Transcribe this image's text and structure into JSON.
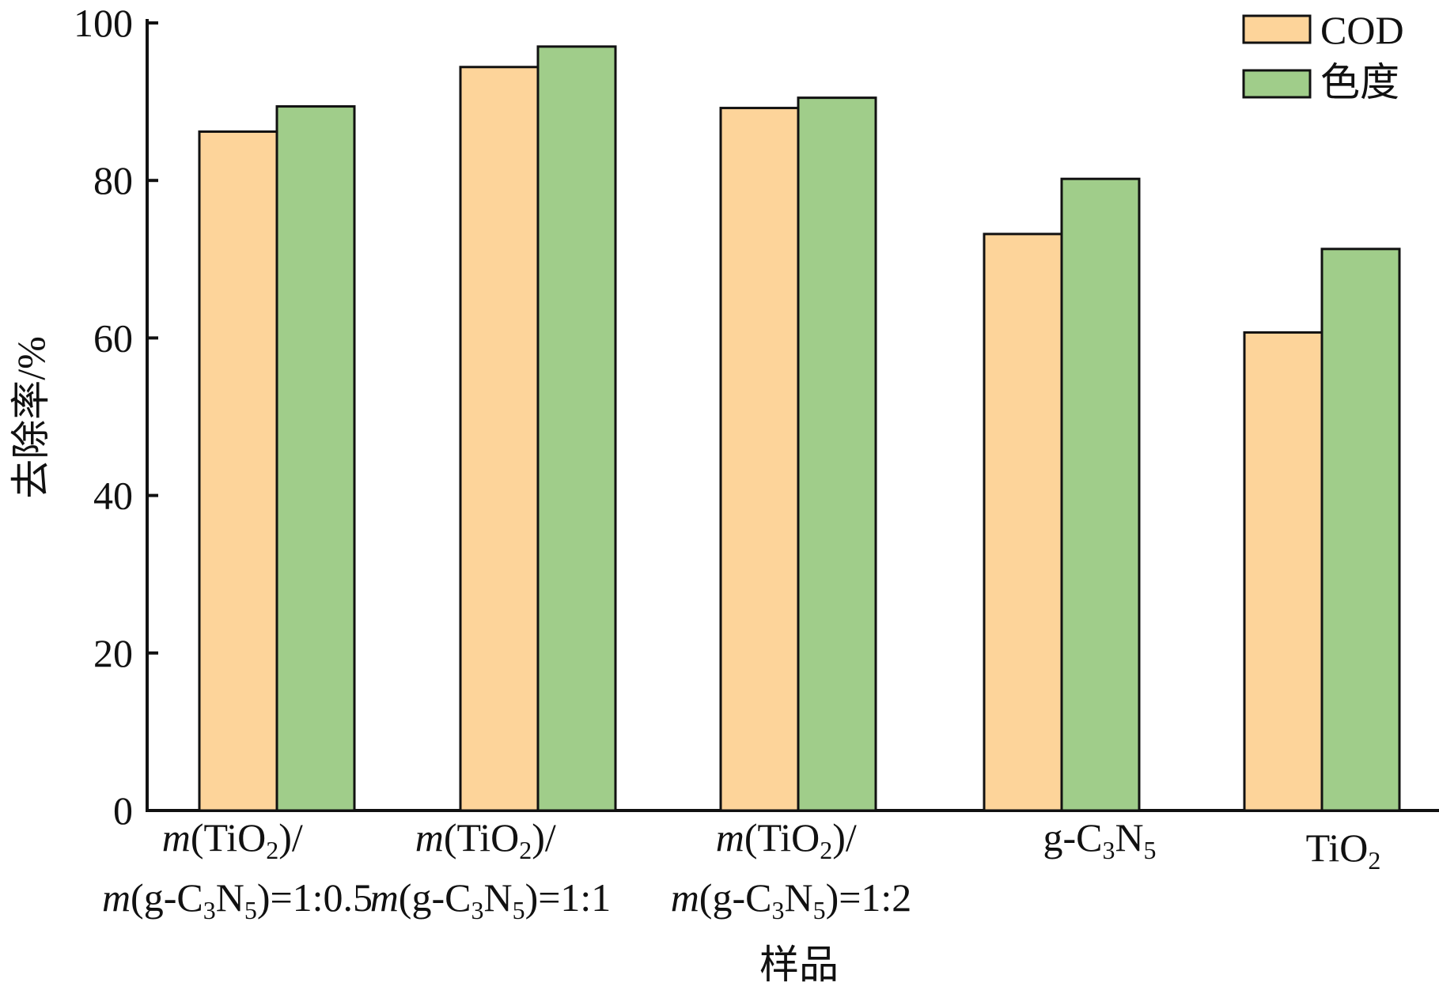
{
  "chart_data": {
    "type": "bar",
    "xlabel": "样品",
    "ylabel": "去除率/%",
    "ylim": [
      0,
      100
    ],
    "yticks": [
      "0",
      "20",
      "40",
      "60",
      "80",
      "100"
    ],
    "categories": [
      "m(TiO2)/m(g-C3N5)=1:0.5",
      "m(TiO2)/m(g-C3N5)=1:1",
      "m(TiO2)/m(g-C3N5)=1:2",
      "g-C3N5",
      "TiO2"
    ],
    "series": [
      {
        "name": "COD",
        "color": "#fdd49a",
        "values": [
          86.2,
          94.4,
          89.2,
          73.2,
          60.7
        ]
      },
      {
        "name": "色度",
        "color": "#a0cd8a",
        "values": [
          89.4,
          97.0,
          90.5,
          80.2,
          71.3
        ]
      }
    ],
    "legend": "top-right",
    "grid": false
  }
}
